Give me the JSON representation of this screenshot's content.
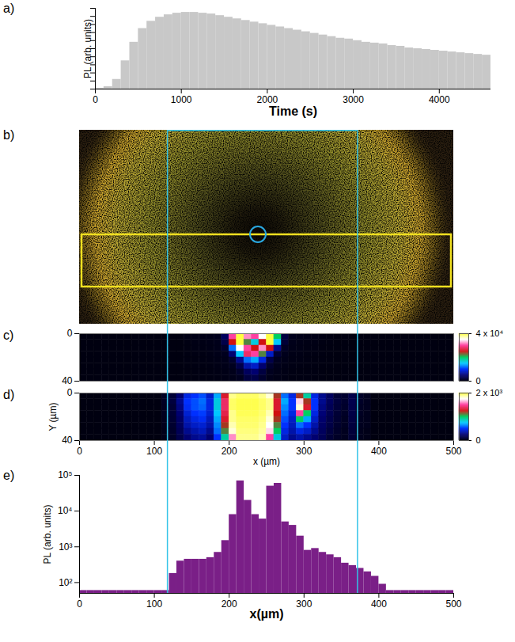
{
  "chart_data": [
    {
      "panel": "a)",
      "type": "histogram",
      "x_label": "Time (s)",
      "y_label": "PL (arb. units)",
      "color": "#c8c8c8",
      "bins": [
        0,
        100,
        200,
        300,
        400,
        500,
        600,
        700,
        800,
        900,
        1000,
        1100,
        1200,
        1300,
        1400,
        1500,
        1600,
        1700,
        1800,
        1900,
        2000,
        2100,
        2200,
        2300,
        2400,
        2500,
        2600,
        2700,
        2800,
        2900,
        3000,
        3100,
        3200,
        3300,
        3400,
        3500,
        3600,
        3700,
        3800,
        3900,
        4000,
        4100,
        4200,
        4300,
        4400,
        4500,
        4600
      ],
      "values": [
        1,
        3,
        12,
        35,
        58,
        75,
        84,
        89,
        92,
        94,
        95,
        95,
        94,
        93,
        91,
        89,
        87,
        85,
        83,
        81,
        79,
        77,
        75,
        73,
        71,
        69,
        67,
        65,
        63,
        62,
        60,
        58,
        57,
        56,
        54,
        53,
        51,
        50,
        49,
        48,
        47,
        46,
        45,
        44,
        43,
        42
      ],
      "xlim": [
        0,
        4600
      ],
      "xticks": [
        0,
        1000,
        2000,
        3000,
        4000
      ],
      "ylim": [
        0,
        100
      ],
      "yticks": [
        0,
        10,
        20,
        30,
        40,
        50,
        60,
        70,
        80,
        90,
        100
      ],
      "tick_labels": "x"
    },
    {
      "panel": "b)",
      "type": "image"
    },
    {
      "panel": "c)",
      "type": "heatmap",
      "xlim": [
        0,
        500
      ],
      "ylim": [
        0,
        40
      ],
      "yticks": [
        0,
        40
      ],
      "tick_labels": "y",
      "xbins": [
        0,
        10,
        20,
        30,
        40,
        50,
        60,
        70,
        80,
        90,
        100,
        110,
        120,
        130,
        140,
        150,
        160,
        170,
        180,
        190,
        200,
        210,
        220,
        230,
        240,
        250,
        260,
        270,
        280,
        290,
        300,
        310,
        320,
        330,
        340,
        350,
        360,
        370,
        380,
        390,
        400,
        410,
        420,
        430,
        440,
        450,
        460,
        470,
        480,
        490,
        500
      ],
      "ybins": [
        0,
        5,
        10,
        15,
        20,
        25,
        30,
        35,
        40
      ],
      "cells": [
        [
          0,
          0,
          0,
          0,
          0,
          0,
          0,
          0,
          0,
          0,
          0,
          0,
          0,
          0,
          200,
          300,
          300,
          400,
          600,
          4000,
          30000,
          40000,
          32000,
          30000,
          35000,
          40000,
          20000,
          2500,
          600,
          400,
          300,
          300,
          200,
          100,
          0,
          0,
          0,
          0,
          0,
          0,
          0,
          0,
          0,
          0,
          0,
          0,
          0,
          0,
          0,
          0
        ],
        [
          0,
          0,
          0,
          0,
          0,
          0,
          0,
          0,
          0,
          0,
          0,
          0,
          0,
          0,
          150,
          250,
          250,
          350,
          500,
          3000,
          25000,
          40000,
          22000,
          16000,
          25000,
          40000,
          15000,
          2000,
          500,
          350,
          250,
          250,
          150,
          80,
          0,
          0,
          0,
          0,
          0,
          0,
          0,
          0,
          0,
          0,
          0,
          0,
          0,
          0,
          0,
          0
        ],
        [
          0,
          0,
          0,
          0,
          0,
          0,
          0,
          0,
          0,
          0,
          0,
          0,
          0,
          0,
          120,
          200,
          200,
          300,
          450,
          1500,
          12000,
          35000,
          30000,
          25000,
          32000,
          25000,
          6000,
          1000,
          400,
          300,
          200,
          200,
          120,
          60,
          0,
          0,
          0,
          0,
          0,
          0,
          0,
          0,
          0,
          0,
          0,
          0,
          0,
          0,
          0,
          0
        ],
        [
          0,
          0,
          0,
          0,
          0,
          0,
          0,
          0,
          0,
          0,
          0,
          0,
          0,
          0,
          100,
          150,
          180,
          250,
          400,
          800,
          5000,
          15000,
          28000,
          30000,
          22000,
          8000,
          2000,
          600,
          300,
          250,
          180,
          150,
          100,
          50,
          0,
          0,
          0,
          0,
          0,
          0,
          0,
          0,
          0,
          0,
          0,
          0,
          0,
          0,
          0,
          0
        ],
        [
          0,
          0,
          0,
          0,
          0,
          0,
          0,
          0,
          0,
          0,
          0,
          0,
          0,
          0,
          80,
          120,
          150,
          200,
          300,
          500,
          1500,
          6000,
          12000,
          14000,
          9000,
          3000,
          800,
          400,
          250,
          200,
          150,
          120,
          80,
          40,
          0,
          0,
          0,
          0,
          0,
          0,
          0,
          0,
          0,
          0,
          0,
          0,
          0,
          0,
          0,
          0
        ],
        [
          0,
          0,
          0,
          0,
          0,
          0,
          0,
          0,
          0,
          0,
          0,
          0,
          0,
          0,
          60,
          100,
          120,
          180,
          250,
          400,
          800,
          3000,
          7000,
          8000,
          5000,
          1500,
          500,
          300,
          200,
          150,
          120,
          100,
          60,
          30,
          0,
          0,
          0,
          0,
          0,
          0,
          0,
          0,
          0,
          0,
          0,
          0,
          0,
          0,
          0,
          0
        ],
        [
          0,
          0,
          0,
          0,
          0,
          0,
          0,
          0,
          0,
          0,
          0,
          0,
          0,
          0,
          50,
          80,
          100,
          150,
          200,
          300,
          500,
          1500,
          4000,
          5000,
          2500,
          800,
          400,
          250,
          150,
          120,
          100,
          80,
          50,
          20,
          0,
          0,
          0,
          0,
          0,
          0,
          0,
          0,
          0,
          0,
          0,
          0,
          0,
          0,
          0,
          0
        ],
        [
          0,
          0,
          0,
          0,
          0,
          0,
          0,
          0,
          0,
          0,
          0,
          0,
          0,
          0,
          40,
          60,
          80,
          120,
          150,
          250,
          400,
          800,
          2500,
          3000,
          1500,
          500,
          300,
          200,
          120,
          100,
          80,
          60,
          40,
          20,
          0,
          0,
          0,
          0,
          0,
          0,
          0,
          0,
          0,
          0,
          0,
          0,
          0,
          0,
          0,
          0
        ]
      ],
      "colorbar": {
        "range": [
          0,
          40000
        ],
        "ticks": [
          0,
          {
            "value": 40000,
            "label": "4 x 10⁴"
          }
        ]
      }
    },
    {
      "panel": "d)",
      "type": "heatmap",
      "x_label": "x (µm)",
      "y_label": "Y (µm)",
      "xlim": [
        0,
        500
      ],
      "xticks": [
        0,
        100,
        200,
        300,
        400,
        500
      ],
      "ylim": [
        0,
        40
      ],
      "yticks": [
        0,
        40
      ],
      "xbins": [
        0,
        10,
        20,
        30,
        40,
        50,
        60,
        70,
        80,
        90,
        100,
        110,
        120,
        130,
        140,
        150,
        160,
        170,
        180,
        190,
        200,
        210,
        220,
        230,
        240,
        250,
        260,
        270,
        280,
        290,
        300,
        310,
        320,
        330,
        340,
        350,
        360,
        370,
        380,
        390,
        400,
        410,
        420,
        430,
        440,
        450,
        460,
        470,
        480,
        490,
        500
      ],
      "ybins": [
        0,
        5,
        10,
        15,
        20,
        25,
        30,
        35,
        40
      ],
      "cells": [
        [
          0,
          0,
          0,
          0,
          0,
          0,
          0,
          0,
          0,
          0,
          0,
          50,
          100,
          250,
          450,
          500,
          550,
          400,
          700,
          1300,
          1900,
          1950,
          1950,
          1950,
          1900,
          1800,
          1200,
          600,
          450,
          1200,
          900,
          450,
          300,
          200,
          100,
          80,
          150,
          60,
          40,
          0,
          0,
          0,
          0,
          0,
          0,
          0,
          0,
          0,
          0,
          0
        ],
        [
          0,
          0,
          0,
          0,
          0,
          0,
          0,
          0,
          0,
          0,
          0,
          50,
          120,
          300,
          500,
          550,
          600,
          450,
          800,
          1400,
          1950,
          1980,
          1980,
          1980,
          1950,
          1900,
          1300,
          700,
          500,
          1700,
          1200,
          500,
          300,
          200,
          120,
          80,
          160,
          60,
          40,
          0,
          0,
          0,
          0,
          0,
          0,
          0,
          0,
          0,
          0,
          0
        ],
        [
          0,
          0,
          0,
          0,
          0,
          0,
          0,
          0,
          0,
          0,
          0,
          40,
          100,
          280,
          480,
          550,
          580,
          450,
          800,
          1400,
          1950,
          1980,
          1980,
          1980,
          1950,
          1900,
          1300,
          650,
          500,
          1800,
          1300,
          500,
          280,
          180,
          110,
          70,
          150,
          50,
          40,
          0,
          0,
          0,
          0,
          0,
          0,
          0,
          0,
          0,
          0,
          0
        ],
        [
          0,
          0,
          0,
          0,
          0,
          0,
          0,
          0,
          0,
          0,
          0,
          40,
          100,
          250,
          420,
          500,
          520,
          420,
          750,
          1350,
          1900,
          1970,
          1970,
          1970,
          1940,
          1850,
          1250,
          600,
          450,
          1500,
          1000,
          450,
          260,
          170,
          100,
          60,
          140,
          50,
          30,
          0,
          0,
          0,
          0,
          0,
          0,
          0,
          0,
          0,
          0,
          0
        ],
        [
          0,
          0,
          0,
          0,
          0,
          0,
          0,
          0,
          0,
          0,
          0,
          30,
          90,
          220,
          380,
          450,
          480,
          380,
          700,
          1300,
          1900,
          1950,
          1950,
          1950,
          1920,
          1800,
          1200,
          550,
          400,
          1000,
          700,
          400,
          240,
          150,
          90,
          50,
          130,
          40,
          30,
          0,
          0,
          0,
          0,
          0,
          0,
          0,
          0,
          0,
          0,
          0
        ],
        [
          0,
          0,
          0,
          0,
          0,
          0,
          0,
          0,
          0,
          0,
          0,
          30,
          80,
          200,
          350,
          400,
          420,
          350,
          650,
          1200,
          1850,
          1940,
          1940,
          1940,
          1900,
          1750,
          1100,
          500,
          380,
          600,
          500,
          350,
          220,
          140,
          80,
          50,
          120,
          40,
          30,
          0,
          0,
          0,
          0,
          0,
          0,
          0,
          0,
          0,
          0,
          0
        ],
        [
          0,
          0,
          0,
          0,
          0,
          0,
          0,
          0,
          0,
          0,
          0,
          20,
          70,
          180,
          300,
          350,
          380,
          300,
          600,
          1100,
          1800,
          1920,
          1920,
          1920,
          1880,
          1700,
          1000,
          450,
          350,
          450,
          400,
          300,
          200,
          120,
          70,
          40,
          110,
          30,
          20,
          0,
          0,
          0,
          0,
          0,
          0,
          0,
          0,
          0,
          0,
          0
        ],
        [
          0,
          0,
          0,
          0,
          0,
          0,
          0,
          0,
          0,
          0,
          0,
          20,
          60,
          150,
          250,
          300,
          320,
          250,
          500,
          900,
          1600,
          1900,
          1900,
          1900,
          1850,
          1500,
          800,
          400,
          300,
          350,
          300,
          250,
          180,
          100,
          60,
          40,
          100,
          30,
          20,
          0,
          0,
          0,
          0,
          0,
          0,
          0,
          0,
          0,
          0,
          0
        ]
      ],
      "colorbar": {
        "range": [
          0,
          2000
        ],
        "ticks": [
          0,
          {
            "value": 2000,
            "label": "2 x 10³"
          }
        ]
      }
    },
    {
      "panel": "e)",
      "type": "histogram",
      "x_label": "x(µm)",
      "y_label": "PL (arb. units)",
      "color": "#7a1f87",
      "log": "y",
      "bins": [
        0,
        10,
        20,
        30,
        40,
        50,
        60,
        70,
        80,
        90,
        100,
        110,
        120,
        130,
        140,
        150,
        160,
        170,
        180,
        190,
        200,
        210,
        220,
        230,
        240,
        250,
        260,
        270,
        280,
        290,
        300,
        310,
        320,
        330,
        340,
        350,
        360,
        370,
        380,
        390,
        400,
        410,
        420,
        430,
        440,
        450,
        460,
        470,
        480,
        490,
        500
      ],
      "values": [
        60,
        60,
        60,
        60,
        60,
        60,
        60,
        60,
        60,
        60,
        60,
        60,
        180,
        400,
        450,
        450,
        450,
        500,
        700,
        1500,
        8000,
        70000,
        20000,
        8000,
        6000,
        50000,
        60000,
        5000,
        4000,
        2000,
        800,
        900,
        700,
        600,
        500,
        350,
        300,
        250,
        200,
        150,
        90,
        60,
        60,
        60,
        60,
        60,
        60,
        60,
        60,
        60
      ],
      "xlim": [
        0,
        500
      ],
      "xticks": [
        0,
        100,
        200,
        300,
        400,
        500
      ],
      "ylim": [
        50,
        100000
      ],
      "yticks": [
        {
          "value": 100,
          "label": "10²"
        },
        {
          "value": 1000,
          "label": "10³"
        },
        {
          "value": 10000,
          "label": "10⁴"
        },
        {
          "value": 100000,
          "label": "10⁵"
        }
      ],
      "highlight_x": [
        118,
        372
      ]
    }
  ]
}
